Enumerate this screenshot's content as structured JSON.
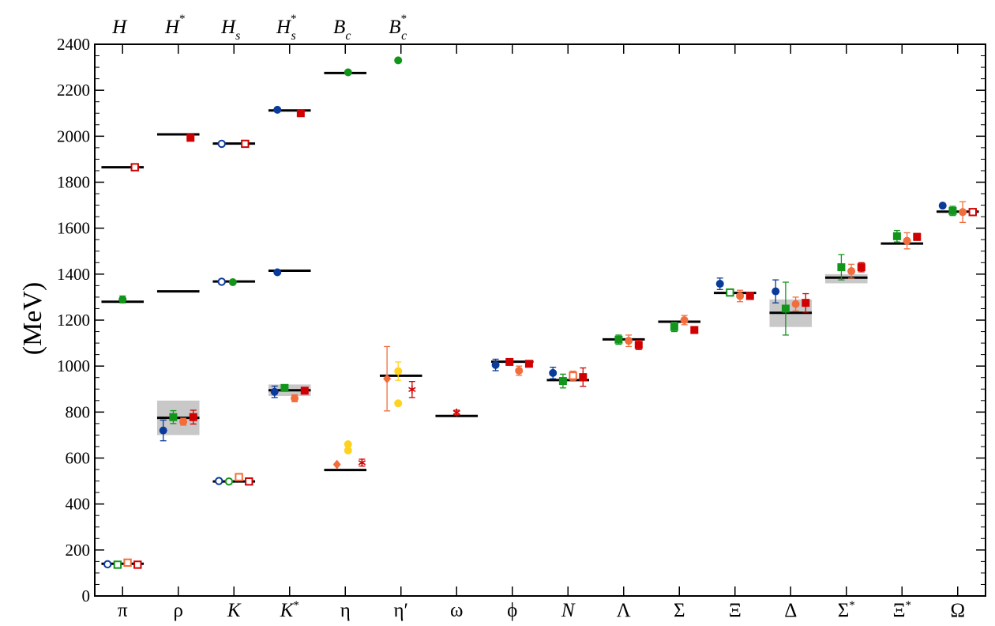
{
  "chart_data": {
    "type": "scatter",
    "ylabel": "(MeV)",
    "ylim": [
      0,
      2400
    ],
    "yticks": [
      0,
      200,
      400,
      600,
      800,
      1000,
      1200,
      1400,
      1600,
      1800,
      2000,
      2200,
      2400
    ],
    "grid": false,
    "categories": [
      {
        "base": "π",
        "italic": false,
        "sup": ""
      },
      {
        "base": "ρ",
        "italic": false,
        "sup": ""
      },
      {
        "base": "K",
        "italic": true,
        "sup": ""
      },
      {
        "base": "K",
        "italic": true,
        "sup": "*"
      },
      {
        "base": "η",
        "italic": false,
        "sup": ""
      },
      {
        "base": "η′",
        "italic": false,
        "sup": ""
      },
      {
        "base": "ω",
        "italic": false,
        "sup": ""
      },
      {
        "base": "ϕ",
        "italic": false,
        "sup": ""
      },
      {
        "base": "N",
        "italic": true,
        "sup": ""
      },
      {
        "base": "Λ",
        "italic": false,
        "sup": ""
      },
      {
        "base": "Σ",
        "italic": false,
        "sup": ""
      },
      {
        "base": "Ξ",
        "italic": false,
        "sup": ""
      },
      {
        "base": "Δ",
        "italic": false,
        "sup": ""
      },
      {
        "base": "Σ",
        "italic": false,
        "sup": "*"
      },
      {
        "base": "Ξ",
        "italic": false,
        "sup": "*"
      },
      {
        "base": "Ω",
        "italic": false,
        "sup": ""
      }
    ],
    "top_labels": [
      {
        "base": "H",
        "sup": "",
        "sub": ""
      },
      {
        "base": "H",
        "sup": "*",
        "sub": ""
      },
      {
        "base": "H",
        "sup": "",
        "sub": "s"
      },
      {
        "base": "H",
        "sup": "*",
        "sub": "s"
      },
      {
        "base": "B",
        "sup": "",
        "sub": "c"
      },
      {
        "base": "B",
        "sup": "*",
        "sub": "c"
      }
    ],
    "colors": {
      "blue": "#0a3a9a",
      "green": "#11951a",
      "orange": "#f26c3c",
      "red": "#d00000",
      "yellow": "#ffd21f",
      "band": "#c8c8c8",
      "line": "#000000"
    },
    "experiment": [
      {
        "cat": 0,
        "value": 140
      },
      {
        "cat": 1,
        "value": 775,
        "band": [
          700,
          850
        ]
      },
      {
        "cat": 2,
        "value": 498
      },
      {
        "cat": 3,
        "value": 895,
        "band": [
          870,
          920
        ]
      },
      {
        "cat": 4,
        "value": 548
      },
      {
        "cat": 5,
        "value": 958
      },
      {
        "cat": 6,
        "value": 783
      },
      {
        "cat": 7,
        "value": 1019
      },
      {
        "cat": 8,
        "value": 939
      },
      {
        "cat": 9,
        "value": 1116
      },
      {
        "cat": 10,
        "value": 1193
      },
      {
        "cat": 11,
        "value": 1318
      },
      {
        "cat": 12,
        "value": 1232,
        "band": [
          1170,
          1290
        ]
      },
      {
        "cat": 13,
        "value": 1385,
        "band": [
          1360,
          1400
        ]
      },
      {
        "cat": 14,
        "value": 1533
      },
      {
        "cat": 15,
        "value": 1672
      },
      {
        "cat": 0,
        "value": 1280
      },
      {
        "cat": 0,
        "value": 1865
      },
      {
        "cat": 1,
        "value": 2008
      },
      {
        "cat": 1,
        "value": 1325
      },
      {
        "cat": 2,
        "value": 1968
      },
      {
        "cat": 2,
        "value": 1368
      },
      {
        "cat": 3,
        "value": 2112
      },
      {
        "cat": 3,
        "value": 1415
      },
      {
        "cat": 4,
        "value": 2275
      }
    ],
    "points": [
      {
        "cat": 0,
        "off": -0.27,
        "value": 138,
        "shape": "open-circle",
        "color": "blue"
      },
      {
        "cat": 0,
        "off": -0.09,
        "value": 136,
        "shape": "open-square",
        "color": "green"
      },
      {
        "cat": 0,
        "off": 0.09,
        "value": 145,
        "shape": "open-square",
        "color": "orange"
      },
      {
        "cat": 0,
        "off": 0.27,
        "value": 136,
        "shape": "open-square",
        "color": "red"
      },
      {
        "cat": 0,
        "off": 0.0,
        "value": 1290,
        "err": 15,
        "shape": "circle",
        "color": "green"
      },
      {
        "cat": 0,
        "off": 0.22,
        "value": 1865,
        "shape": "open-square",
        "color": "red"
      },
      {
        "cat": 1,
        "off": -0.27,
        "value": 720,
        "err": 45,
        "shape": "circle",
        "color": "blue"
      },
      {
        "cat": 1,
        "off": -0.09,
        "value": 778,
        "err": 28,
        "shape": "square",
        "color": "green"
      },
      {
        "cat": 1,
        "off": 0.09,
        "value": 758,
        "err": 15,
        "shape": "circle",
        "color": "orange"
      },
      {
        "cat": 1,
        "off": 0.27,
        "value": 778,
        "err": 30,
        "shape": "square",
        "color": "red"
      },
      {
        "cat": 1,
        "off": 0.22,
        "value": 1993,
        "shape": "square",
        "color": "red"
      },
      {
        "cat": 2,
        "off": -0.27,
        "value": 500,
        "shape": "open-circle",
        "color": "blue"
      },
      {
        "cat": 2,
        "off": -0.09,
        "value": 498,
        "shape": "open-circle",
        "color": "green"
      },
      {
        "cat": 2,
        "off": 0.09,
        "value": 517,
        "shape": "open-square",
        "color": "orange"
      },
      {
        "cat": 2,
        "off": 0.27,
        "value": 498,
        "shape": "open-square",
        "color": "red"
      },
      {
        "cat": 2,
        "off": -0.22,
        "value": 1367,
        "shape": "open-circle",
        "color": "blue"
      },
      {
        "cat": 2,
        "off": -0.02,
        "value": 1365,
        "shape": "circle",
        "color": "green"
      },
      {
        "cat": 2,
        "off": -0.22,
        "value": 1967,
        "shape": "open-circle",
        "color": "blue"
      },
      {
        "cat": 2,
        "off": 0.2,
        "value": 1967,
        "shape": "open-square",
        "color": "red"
      },
      {
        "cat": 3,
        "off": -0.27,
        "value": 888,
        "err": 25,
        "shape": "circle",
        "color": "blue"
      },
      {
        "cat": 3,
        "off": -0.09,
        "value": 905,
        "err": 10,
        "shape": "square",
        "color": "green"
      },
      {
        "cat": 3,
        "off": 0.09,
        "value": 860,
        "err": 15,
        "shape": "circle",
        "color": "orange"
      },
      {
        "cat": 3,
        "off": 0.27,
        "value": 893,
        "err": 10,
        "shape": "square",
        "color": "red"
      },
      {
        "cat": 3,
        "off": -0.22,
        "value": 1408,
        "shape": "circle",
        "color": "blue"
      },
      {
        "cat": 3,
        "off": -0.22,
        "value": 2115,
        "shape": "circle",
        "color": "blue"
      },
      {
        "cat": 3,
        "off": 0.2,
        "value": 2100,
        "shape": "square",
        "color": "red"
      },
      {
        "cat": 4,
        "off": -0.15,
        "value": 572,
        "shape": "diamond",
        "color": "orange"
      },
      {
        "cat": 4,
        "off": 0.05,
        "value": 660,
        "shape": "circle",
        "color": "yellow"
      },
      {
        "cat": 4,
        "off": 0.05,
        "value": 633,
        "shape": "circle",
        "color": "yellow"
      },
      {
        "cat": 4,
        "off": 0.3,
        "value": 580,
        "err": 15,
        "shape": "asterisk",
        "color": "red"
      },
      {
        "cat": 4,
        "off": 0.05,
        "value": 2278,
        "shape": "circle",
        "color": "green"
      },
      {
        "cat": 5,
        "off": -0.25,
        "value": 945,
        "err": 140,
        "shape": "diamond",
        "color": "orange"
      },
      {
        "cat": 5,
        "off": -0.05,
        "value": 978,
        "err": 40,
        "shape": "circle",
        "color": "yellow"
      },
      {
        "cat": 5,
        "off": -0.05,
        "value": 838,
        "shape": "circle",
        "color": "yellow"
      },
      {
        "cat": 5,
        "off": 0.2,
        "value": 898,
        "err": 35,
        "shape": "asterisk",
        "color": "red"
      },
      {
        "cat": 5,
        "off": -0.05,
        "value": 2330,
        "shape": "circle",
        "color": "green"
      },
      {
        "cat": 6,
        "off": 0.0,
        "value": 798,
        "err": 10,
        "shape": "asterisk",
        "color": "red"
      },
      {
        "cat": 7,
        "off": -0.3,
        "value": 1005,
        "err": 25,
        "shape": "circle",
        "color": "blue"
      },
      {
        "cat": 7,
        "off": -0.05,
        "value": 1018,
        "err": 10,
        "shape": "square",
        "color": "red"
      },
      {
        "cat": 7,
        "off": 0.12,
        "value": 980,
        "err": 20,
        "shape": "circle",
        "color": "orange"
      },
      {
        "cat": 7,
        "off": 0.3,
        "value": 1010,
        "err": 10,
        "shape": "square",
        "color": "red"
      },
      {
        "cat": 8,
        "off": -0.27,
        "value": 970,
        "err": 25,
        "shape": "circle",
        "color": "blue"
      },
      {
        "cat": 8,
        "off": -0.09,
        "value": 935,
        "err": 30,
        "shape": "square",
        "color": "green"
      },
      {
        "cat": 8,
        "off": 0.09,
        "value": 958,
        "err": 20,
        "shape": "open-square",
        "color": "orange"
      },
      {
        "cat": 8,
        "off": 0.27,
        "value": 952,
        "err": 40,
        "shape": "square",
        "color": "red"
      },
      {
        "cat": 9,
        "off": -0.09,
        "value": 1115,
        "err": 20,
        "shape": "square",
        "color": "green"
      },
      {
        "cat": 9,
        "off": 0.09,
        "value": 1110,
        "err": 25,
        "shape": "circle",
        "color": "orange"
      },
      {
        "cat": 9,
        "off": 0.27,
        "value": 1092,
        "err": 20,
        "shape": "square",
        "color": "red"
      },
      {
        "cat": 10,
        "off": -0.09,
        "value": 1170,
        "err": 20,
        "shape": "square",
        "color": "green"
      },
      {
        "cat": 10,
        "off": 0.09,
        "value": 1200,
        "err": 20,
        "shape": "circle",
        "color": "orange"
      },
      {
        "cat": 10,
        "off": 0.27,
        "value": 1157,
        "err": 15,
        "shape": "square",
        "color": "red"
      },
      {
        "cat": 11,
        "off": -0.27,
        "value": 1358,
        "err": 25,
        "shape": "circle",
        "color": "blue"
      },
      {
        "cat": 11,
        "off": -0.09,
        "value": 1320,
        "shape": "open-square",
        "color": "green"
      },
      {
        "cat": 11,
        "off": 0.09,
        "value": 1305,
        "err": 25,
        "shape": "circle",
        "color": "orange"
      },
      {
        "cat": 11,
        "off": 0.27,
        "value": 1305,
        "err": 15,
        "shape": "square",
        "color": "red"
      },
      {
        "cat": 12,
        "off": -0.27,
        "value": 1325,
        "err": 50,
        "shape": "circle",
        "color": "blue"
      },
      {
        "cat": 12,
        "off": -0.09,
        "value": 1250,
        "err": 115,
        "shape": "square",
        "color": "green"
      },
      {
        "cat": 12,
        "off": 0.09,
        "value": 1270,
        "err": 30,
        "shape": "circle",
        "color": "orange"
      },
      {
        "cat": 12,
        "off": 0.27,
        "value": 1275,
        "err": 40,
        "shape": "square",
        "color": "red"
      },
      {
        "cat": 13,
        "off": -0.09,
        "value": 1430,
        "err": 55,
        "shape": "square",
        "color": "green"
      },
      {
        "cat": 13,
        "off": 0.09,
        "value": 1413,
        "err": 30,
        "shape": "circle",
        "color": "orange"
      },
      {
        "cat": 13,
        "off": 0.27,
        "value": 1430,
        "err": 20,
        "shape": "square",
        "color": "red"
      },
      {
        "cat": 14,
        "off": -0.09,
        "value": 1565,
        "err": 25,
        "shape": "square",
        "color": "green"
      },
      {
        "cat": 14,
        "off": 0.09,
        "value": 1545,
        "err": 35,
        "shape": "circle",
        "color": "orange"
      },
      {
        "cat": 14,
        "off": 0.27,
        "value": 1562,
        "err": 15,
        "shape": "square",
        "color": "red"
      },
      {
        "cat": 15,
        "off": -0.27,
        "value": 1698,
        "shape": "circle",
        "color": "blue"
      },
      {
        "cat": 15,
        "off": -0.09,
        "value": 1675,
        "err": 20,
        "shape": "square",
        "color": "green"
      },
      {
        "cat": 15,
        "off": 0.09,
        "value": 1670,
        "err": 45,
        "shape": "circle",
        "color": "orange"
      },
      {
        "cat": 15,
        "off": 0.27,
        "value": 1670,
        "shape": "open-square",
        "color": "red"
      }
    ]
  }
}
